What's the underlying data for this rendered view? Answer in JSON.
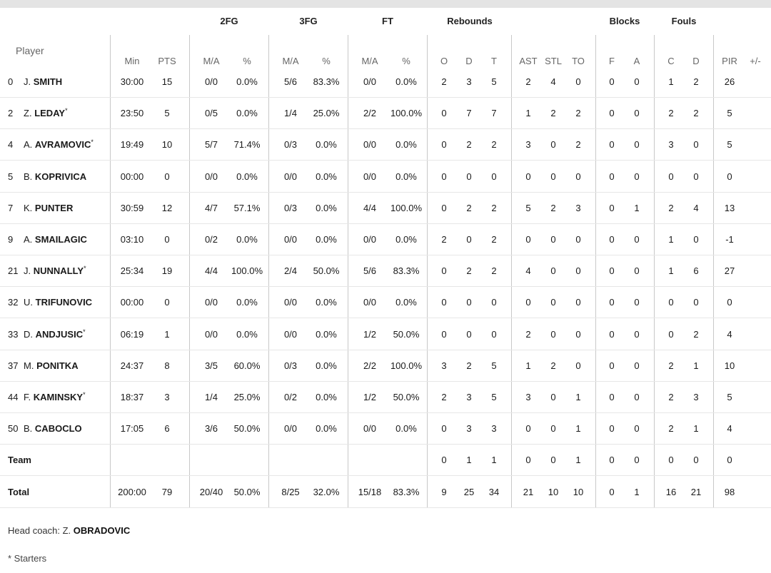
{
  "header": {
    "groups": [
      "2FG",
      "3FG",
      "FT",
      "Rebounds",
      "Blocks",
      "Fouls"
    ],
    "player_label": "Player",
    "columns": [
      "Min",
      "PTS",
      "M/A",
      "%",
      "M/A",
      "%",
      "M/A",
      "%",
      "O",
      "D",
      "T",
      "AST",
      "STL",
      "TO",
      "F",
      "A",
      "C",
      "D",
      "PIR",
      "+/-"
    ]
  },
  "rows": [
    {
      "num": "0",
      "init": "J.",
      "last": "SMITH",
      "star": "",
      "stats": [
        "30:00",
        "15",
        "0/0",
        "0.0%",
        "5/6",
        "83.3%",
        "0/0",
        "0.0%",
        "2",
        "3",
        "5",
        "2",
        "4",
        "0",
        "0",
        "0",
        "1",
        "2",
        "26",
        ""
      ]
    },
    {
      "num": "2",
      "init": "Z.",
      "last": "LEDAY",
      "star": "*",
      "stats": [
        "23:50",
        "5",
        "0/5",
        "0.0%",
        "1/4",
        "25.0%",
        "2/2",
        "100.0%",
        "0",
        "7",
        "7",
        "1",
        "2",
        "2",
        "0",
        "0",
        "2",
        "2",
        "5",
        ""
      ]
    },
    {
      "num": "4",
      "init": "A.",
      "last": "AVRAMOVIC",
      "star": "*",
      "stats": [
        "19:49",
        "10",
        "5/7",
        "71.4%",
        "0/3",
        "0.0%",
        "0/0",
        "0.0%",
        "0",
        "2",
        "2",
        "3",
        "0",
        "2",
        "0",
        "0",
        "3",
        "0",
        "5",
        ""
      ]
    },
    {
      "num": "5",
      "init": "B.",
      "last": "KOPRIVICA",
      "star": "",
      "stats": [
        "00:00",
        "0",
        "0/0",
        "0.0%",
        "0/0",
        "0.0%",
        "0/0",
        "0.0%",
        "0",
        "0",
        "0",
        "0",
        "0",
        "0",
        "0",
        "0",
        "0",
        "0",
        "0",
        ""
      ]
    },
    {
      "num": "7",
      "init": "K.",
      "last": "PUNTER",
      "star": "",
      "stats": [
        "30:59",
        "12",
        "4/7",
        "57.1%",
        "0/3",
        "0.0%",
        "4/4",
        "100.0%",
        "0",
        "2",
        "2",
        "5",
        "2",
        "3",
        "0",
        "1",
        "2",
        "4",
        "13",
        ""
      ]
    },
    {
      "num": "9",
      "init": "A.",
      "last": "SMAILAGIC",
      "star": "",
      "stats": [
        "03:10",
        "0",
        "0/2",
        "0.0%",
        "0/0",
        "0.0%",
        "0/0",
        "0.0%",
        "2",
        "0",
        "2",
        "0",
        "0",
        "0",
        "0",
        "0",
        "1",
        "0",
        "-1",
        ""
      ]
    },
    {
      "num": "21",
      "init": "J.",
      "last": "NUNNALLY",
      "star": "*",
      "stats": [
        "25:34",
        "19",
        "4/4",
        "100.0%",
        "2/4",
        "50.0%",
        "5/6",
        "83.3%",
        "0",
        "2",
        "2",
        "4",
        "0",
        "0",
        "0",
        "0",
        "1",
        "6",
        "27",
        ""
      ]
    },
    {
      "num": "32",
      "init": "U.",
      "last": "TRIFUNOVIC",
      "star": "",
      "stats": [
        "00:00",
        "0",
        "0/0",
        "0.0%",
        "0/0",
        "0.0%",
        "0/0",
        "0.0%",
        "0",
        "0",
        "0",
        "0",
        "0",
        "0",
        "0",
        "0",
        "0",
        "0",
        "0",
        ""
      ]
    },
    {
      "num": "33",
      "init": "D.",
      "last": "ANDJUSIC",
      "star": "*",
      "stats": [
        "06:19",
        "1",
        "0/0",
        "0.0%",
        "0/0",
        "0.0%",
        "1/2",
        "50.0%",
        "0",
        "0",
        "0",
        "2",
        "0",
        "0",
        "0",
        "0",
        "0",
        "2",
        "4",
        ""
      ]
    },
    {
      "num": "37",
      "init": "M.",
      "last": "PONITKA",
      "star": "",
      "stats": [
        "24:37",
        "8",
        "3/5",
        "60.0%",
        "0/3",
        "0.0%",
        "2/2",
        "100.0%",
        "3",
        "2",
        "5",
        "1",
        "2",
        "0",
        "0",
        "0",
        "2",
        "1",
        "10",
        ""
      ]
    },
    {
      "num": "44",
      "init": "F.",
      "last": "KAMINSKY",
      "star": "*",
      "stats": [
        "18:37",
        "3",
        "1/4",
        "25.0%",
        "0/2",
        "0.0%",
        "1/2",
        "50.0%",
        "2",
        "3",
        "5",
        "3",
        "0",
        "1",
        "0",
        "0",
        "2",
        "3",
        "5",
        ""
      ]
    },
    {
      "num": "50",
      "init": "B.",
      "last": "CABOCLO",
      "star": "",
      "stats": [
        "17:05",
        "6",
        "3/6",
        "50.0%",
        "0/0",
        "0.0%",
        "0/0",
        "0.0%",
        "0",
        "3",
        "3",
        "0",
        "0",
        "1",
        "0",
        "0",
        "2",
        "1",
        "4",
        ""
      ]
    }
  ],
  "team_row": {
    "label": "Team",
    "stats": [
      "",
      "",
      "",
      "",
      "",
      "",
      "",
      "",
      "0",
      "1",
      "1",
      "0",
      "0",
      "1",
      "0",
      "0",
      "0",
      "0",
      "0",
      ""
    ]
  },
  "total_row": {
    "label": "Total",
    "stats": [
      "200:00",
      "79",
      "20/40",
      "50.0%",
      "8/25",
      "32.0%",
      "15/18",
      "83.3%",
      "9",
      "25",
      "34",
      "21",
      "10",
      "10",
      "0",
      "1",
      "16",
      "21",
      "98",
      ""
    ]
  },
  "footer": {
    "coach_prefix": "Head coach: Z.",
    "coach_name": "OBRADOVIC",
    "starters_note": "* Starters"
  }
}
